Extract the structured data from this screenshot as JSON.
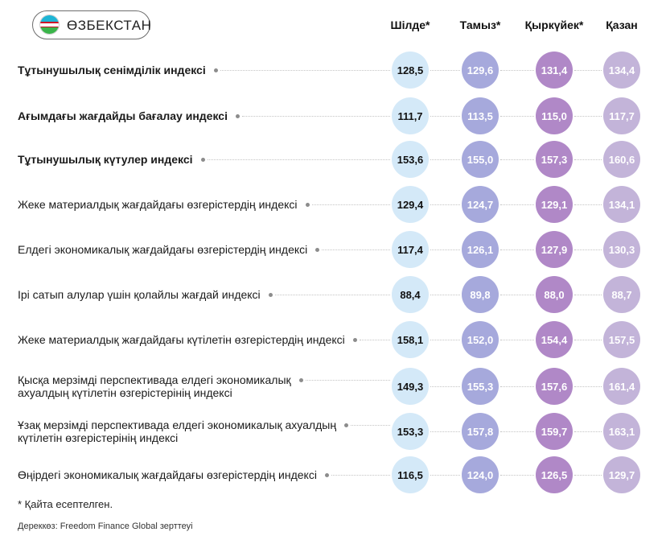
{
  "badge": {
    "country": "ӨЗБЕКСТАН"
  },
  "footnote": "* Қайта есептелген.",
  "source": "Дереккөз: Freedom Finance Global зерттеуі",
  "colors": {
    "s1": "#d4e9f8",
    "s2": "#a6a9dc",
    "s3": "#b088c7",
    "s4": "#c3b4d9"
  },
  "chart_data": {
    "type": "table",
    "columns": [
      "Шілде*",
      "Тамыз*",
      "Қыркүйек*",
      "Қазан"
    ],
    "rows": [
      {
        "label": [
          "Тұтынушылық сенімділік индексі"
        ],
        "bold": true,
        "values": [
          128.5,
          129.6,
          131.4,
          134.4
        ]
      },
      {
        "label": [
          "Ағымдағы жағдайды бағалау индексі"
        ],
        "bold": true,
        "values": [
          111.7,
          113.5,
          115.0,
          117.7
        ]
      },
      {
        "label": [
          "Тұтынушылық күтулер индексі"
        ],
        "bold": true,
        "values": [
          153.6,
          155.0,
          157.3,
          160.6
        ]
      },
      {
        "label": [
          "Жеке материалдық жағдайдағы өзгерістердің индексі"
        ],
        "bold": false,
        "values": [
          129.4,
          124.7,
          129.1,
          134.1
        ]
      },
      {
        "label": [
          "Елдегі экономикалық жағдайдағы өзгерістердің индексі"
        ],
        "bold": false,
        "values": [
          117.4,
          126.1,
          127.9,
          130.3
        ]
      },
      {
        "label": [
          "Ірі сатып алулар үшін қолайлы жағдай индексі"
        ],
        "bold": false,
        "values": [
          88.4,
          89.8,
          88.0,
          88.7
        ]
      },
      {
        "label": [
          "Жеке материалдық жағдайдағы күтілетін өзгерістердің индексі"
        ],
        "bold": false,
        "values": [
          158.1,
          152.0,
          154.4,
          157.5
        ]
      },
      {
        "label": [
          "Қысқа мерзімді перспективада елдегі экономикалық",
          "ахуалдың күтілетін өзгерістерінің индексі"
        ],
        "bold": false,
        "values": [
          149.3,
          155.3,
          157.6,
          161.4
        ]
      },
      {
        "label": [
          "Ұзақ мерзімді перспективада елдегі экономикалық ахуалдың",
          "күтілетін өзгерістерінің индексі"
        ],
        "bold": false,
        "values": [
          153.3,
          157.8,
          159.7,
          163.1
        ]
      },
      {
        "label": [
          "Өңірдегі экономикалық жағдайдағы өзгерістердің индексі"
        ],
        "bold": false,
        "values": [
          116.5,
          124.0,
          126.5,
          129.7
        ]
      }
    ]
  }
}
